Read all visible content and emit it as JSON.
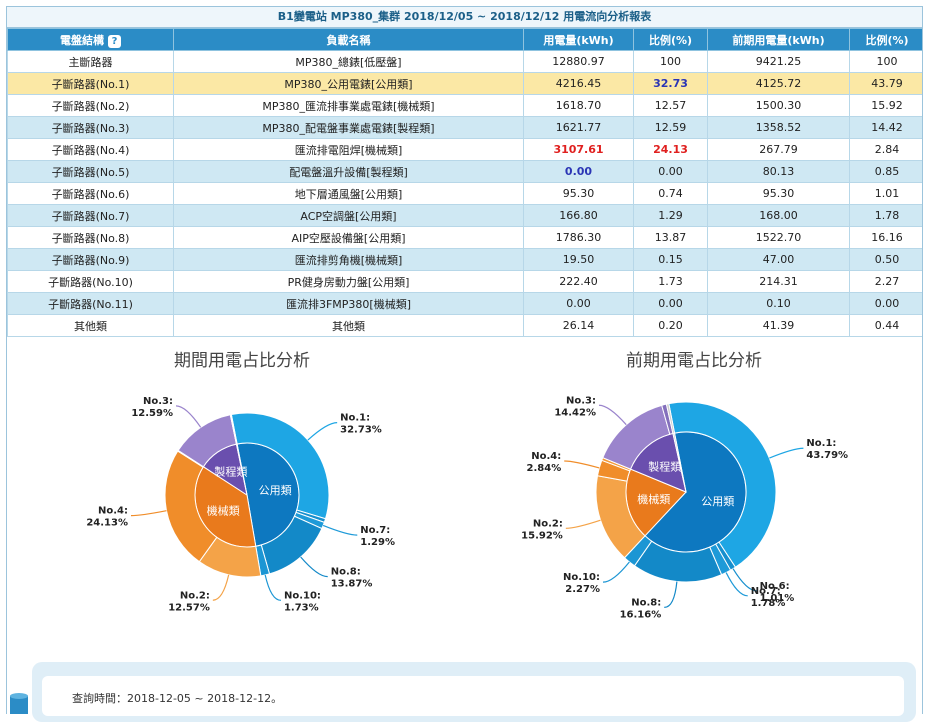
{
  "report": {
    "title": "B1變電站 MP380_集群 2018/12/05 ~ 2018/12/12 用電流向分析報表",
    "help_icon": "?",
    "headers": [
      "電盤結構",
      "負載名稱",
      "用電量(kWh)",
      "比例(%)",
      "前期用電量(kWh)",
      "比例(%)"
    ],
    "rows": [
      {
        "structure": "主斷路器",
        "load": "MP380_總錶[低壓盤]",
        "kwh": "12880.97",
        "pct": "100",
        "prev_kwh": "9421.25",
        "prev_pct": "100",
        "style": "odd"
      },
      {
        "structure": "子斷路器(No.1)",
        "load": "MP380_公用電錶[公用類]",
        "kwh": "4216.45",
        "pct": "32.73",
        "prev_kwh": "4125.72",
        "prev_pct": "43.79",
        "style": "hl",
        "pct_color": "blue"
      },
      {
        "structure": "子斷路器(No.2)",
        "load": "MP380_匯流排事業處電錶[機械類]",
        "kwh": "1618.70",
        "pct": "12.57",
        "prev_kwh": "1500.30",
        "prev_pct": "15.92",
        "style": "odd"
      },
      {
        "structure": "子斷路器(No.3)",
        "load": "MP380_配電盤事業處電錶[製程類]",
        "kwh": "1621.77",
        "pct": "12.59",
        "prev_kwh": "1358.52",
        "prev_pct": "14.42",
        "style": "even"
      },
      {
        "structure": "子斷路器(No.4)",
        "load": "匯流排電阻焊[機械類]",
        "kwh": "3107.61",
        "pct": "24.13",
        "prev_kwh": "267.79",
        "prev_pct": "2.84",
        "style": "odd",
        "kwh_color": "red",
        "pct_color": "red"
      },
      {
        "structure": "子斷路器(No.5)",
        "load": "配電盤溫升設備[製程類]",
        "kwh": "0.00",
        "pct": "0.00",
        "prev_kwh": "80.13",
        "prev_pct": "0.85",
        "style": "even",
        "kwh_color": "blue"
      },
      {
        "structure": "子斷路器(No.6)",
        "load": "地下層通風盤[公用類]",
        "kwh": "95.30",
        "pct": "0.74",
        "prev_kwh": "95.30",
        "prev_pct": "1.01",
        "style": "odd"
      },
      {
        "structure": "子斷路器(No.7)",
        "load": "ACP空調盤[公用類]",
        "kwh": "166.80",
        "pct": "1.29",
        "prev_kwh": "168.00",
        "prev_pct": "1.78",
        "style": "even"
      },
      {
        "structure": "子斷路器(No.8)",
        "load": "AIP空壓設備盤[公用類]",
        "kwh": "1786.30",
        "pct": "13.87",
        "prev_kwh": "1522.70",
        "prev_pct": "16.16",
        "style": "odd"
      },
      {
        "structure": "子斷路器(No.9)",
        "load": "匯流排剪角機[機械類]",
        "kwh": "19.50",
        "pct": "0.15",
        "prev_kwh": "47.00",
        "prev_pct": "0.50",
        "style": "even"
      },
      {
        "structure": "子斷路器(No.10)",
        "load": "PR健身房動力盤[公用類]",
        "kwh": "222.40",
        "pct": "1.73",
        "prev_kwh": "214.31",
        "prev_pct": "2.27",
        "style": "odd"
      },
      {
        "structure": "子斷路器(No.11)",
        "load": "匯流排3FMP380[機械類]",
        "kwh": "0.00",
        "pct": "0.00",
        "prev_kwh": "0.10",
        "prev_pct": "0.00",
        "style": "even"
      },
      {
        "structure": "其他類",
        "load": "其他類",
        "kwh": "26.14",
        "pct": "0.20",
        "prev_kwh": "41.39",
        "prev_pct": "0.44",
        "style": "odd"
      }
    ]
  },
  "colors": {
    "public": "#1f9ad6",
    "public_inner": "#0d78c0",
    "mech": "#f29a38",
    "mech_inner": "#e97a1c",
    "proc": "#8a72c0",
    "proc_inner": "#6a4fae",
    "other": "#cccccc"
  },
  "chart_data": [
    {
      "type": "pie",
      "title": "期間用電占比分析",
      "inner": [
        {
          "name": "公用類",
          "value": 50.36,
          "color_key": "public"
        },
        {
          "name": "機械類",
          "value": 36.85,
          "color_key": "mech"
        },
        {
          "name": "製程類",
          "value": 12.59,
          "color_key": "proc"
        },
        {
          "name": "其他類",
          "value": 0.2,
          "color_key": "other"
        }
      ],
      "outer": [
        {
          "name": "No.1",
          "value": 32.73,
          "group": "public",
          "label": "No.1:\n32.73%"
        },
        {
          "name": "No.6",
          "value": 0.74,
          "group": "public",
          "label": ""
        },
        {
          "name": "No.7",
          "value": 1.29,
          "group": "public",
          "label": "No.7:\n1.29%"
        },
        {
          "name": "No.8",
          "value": 13.87,
          "group": "public",
          "label": "No.8:\n13.87%"
        },
        {
          "name": "No.10",
          "value": 1.73,
          "group": "public",
          "label": "No.10:\n1.73%"
        },
        {
          "name": "No.2",
          "value": 12.57,
          "group": "mech",
          "label": "No.2:\n12.57%"
        },
        {
          "name": "No.4",
          "value": 24.13,
          "group": "mech",
          "label": "No.4:\n24.13%"
        },
        {
          "name": "No.9",
          "value": 0.15,
          "group": "mech",
          "label": ""
        },
        {
          "name": "No.11",
          "value": 0.0,
          "group": "mech",
          "label": ""
        },
        {
          "name": "No.3",
          "value": 12.59,
          "group": "proc",
          "label": "No.3:\n12.59%"
        },
        {
          "name": "No.5",
          "value": 0.0,
          "group": "proc",
          "label": ""
        },
        {
          "name": "其他類",
          "value": 0.2,
          "group": "other",
          "label": ""
        }
      ]
    },
    {
      "type": "pie",
      "title": "前期用電占比分析",
      "inner": [
        {
          "name": "公用類",
          "value": 65.01,
          "color_key": "public"
        },
        {
          "name": "機械類",
          "value": 19.26,
          "color_key": "mech"
        },
        {
          "name": "製程類",
          "value": 15.27,
          "color_key": "proc"
        },
        {
          "name": "其他類",
          "value": 0.44,
          "color_key": "other"
        }
      ],
      "outer": [
        {
          "name": "No.1",
          "value": 43.79,
          "group": "public",
          "label": "No.1:\n43.79%"
        },
        {
          "name": "No.6",
          "value": 1.01,
          "group": "public",
          "label": "No.6:\n1.01%"
        },
        {
          "name": "No.7",
          "value": 1.78,
          "group": "public",
          "label": "No.7:\n1.78%"
        },
        {
          "name": "No.8",
          "value": 16.16,
          "group": "public",
          "label": "No.8:\n16.16%"
        },
        {
          "name": "No.10",
          "value": 2.27,
          "group": "public",
          "label": "No.10:\n2.27%"
        },
        {
          "name": "No.2",
          "value": 15.92,
          "group": "mech",
          "label": "No.2:\n15.92%"
        },
        {
          "name": "No.4",
          "value": 2.84,
          "group": "mech",
          "label": "No.4:\n2.84%"
        },
        {
          "name": "No.9",
          "value": 0.5,
          "group": "mech",
          "label": ""
        },
        {
          "name": "No.11",
          "value": 0.0,
          "group": "mech",
          "label": ""
        },
        {
          "name": "No.3",
          "value": 14.42,
          "group": "proc",
          "label": "No.3:\n14.42%"
        },
        {
          "name": "No.5",
          "value": 0.85,
          "group": "proc",
          "label": ""
        },
        {
          "name": "其他類",
          "value": 0.44,
          "group": "other",
          "label": ""
        }
      ]
    }
  ],
  "query": {
    "text": "查詢時間：2018-12-05 ~ 2018-12-12。"
  },
  "icons": {
    "database": "database-icon"
  }
}
